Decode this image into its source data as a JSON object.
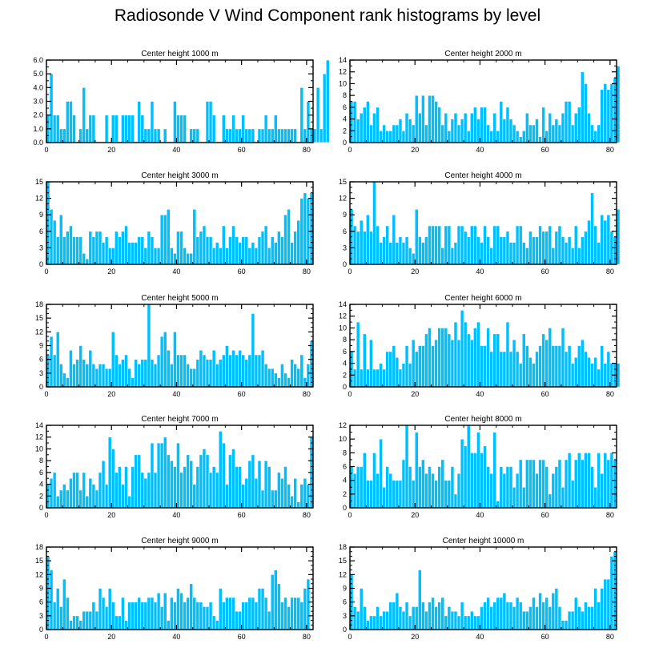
{
  "title": "Radiosonde V Wind Component rank histograms by level",
  "colors": {
    "bar_fill": "#00bfff",
    "bar_edge": "#ffffff",
    "axis": "#000000"
  },
  "chart_data": [
    {
      "type": "bar",
      "title": "Center height 1000 m",
      "xlim": [
        0,
        82
      ],
      "ylim": [
        0,
        6
      ],
      "xticks": [
        0,
        20,
        40,
        60,
        80
      ],
      "yticks": [
        0,
        1,
        2,
        3,
        4,
        5,
        6
      ],
      "ytick_labels": [
        "0.0",
        "1.0",
        "2.0",
        "3.0",
        "4.0",
        "5.0",
        "6.0"
      ],
      "values": [
        2,
        5,
        2,
        2,
        1,
        1,
        3,
        3,
        2,
        0,
        1,
        4,
        1,
        2,
        2,
        0,
        0,
        0,
        2,
        0,
        2,
        2,
        0,
        2,
        2,
        2,
        2,
        0,
        3,
        2,
        1,
        1,
        3,
        1,
        1,
        0,
        1,
        0,
        0,
        3,
        2,
        2,
        2,
        0,
        1,
        1,
        1,
        0,
        0,
        3,
        3,
        2,
        0,
        0,
        2,
        1,
        1,
        2,
        1,
        1,
        2,
        1,
        1,
        1,
        0,
        1,
        1,
        2,
        1,
        1,
        2,
        1,
        1,
        1,
        1,
        1,
        1,
        0,
        4,
        1,
        3,
        1,
        1,
        4,
        1,
        5,
        6
      ]
    },
    {
      "type": "bar",
      "title": "Center height 2000 m",
      "xlim": [
        0,
        82
      ],
      "ylim": [
        0,
        14
      ],
      "xticks": [
        0,
        20,
        40,
        60,
        80
      ],
      "yticks": [
        0,
        2,
        4,
        6,
        8,
        10,
        12,
        14
      ],
      "ytick_labels": [
        "0",
        "2",
        "4",
        "6",
        "8",
        "10",
        "12",
        "14"
      ],
      "values": [
        7,
        7,
        4,
        5,
        6,
        7,
        3,
        5,
        6,
        2,
        3,
        2,
        2,
        3,
        3,
        4,
        2,
        5,
        4,
        3,
        8,
        5,
        8,
        3,
        8,
        8,
        7,
        6,
        3,
        5,
        2,
        4,
        5,
        3,
        4,
        5,
        2,
        5,
        6,
        4,
        6,
        6,
        3,
        2,
        5,
        2,
        7,
        4,
        6,
        4,
        3,
        2,
        1,
        2,
        5,
        3,
        3,
        4,
        1,
        6,
        2,
        5,
        3,
        4,
        3,
        5,
        7,
        7,
        3,
        5,
        6,
        12,
        10,
        5,
        3,
        2,
        3,
        9,
        10,
        9,
        10,
        11,
        13
      ]
    },
    {
      "type": "bar",
      "title": "Center height 3000 m",
      "xlim": [
        0,
        82
      ],
      "ylim": [
        0,
        15
      ],
      "xticks": [
        0,
        20,
        40,
        60,
        80
      ],
      "yticks": [
        0,
        3,
        6,
        9,
        12,
        15
      ],
      "ytick_labels": [
        "0",
        "3",
        "6",
        "9",
        "12",
        "15"
      ],
      "values": [
        15,
        10,
        8,
        5,
        9,
        5,
        6,
        7,
        5,
        5,
        5,
        2,
        1,
        6,
        5,
        6,
        6,
        4,
        5,
        3,
        3,
        6,
        5,
        6,
        7,
        4,
        4,
        4,
        5,
        5,
        3,
        6,
        5,
        3,
        3,
        9,
        9,
        10,
        3,
        2,
        6,
        6,
        3,
        2,
        2,
        10,
        5,
        6,
        7,
        5,
        5,
        3,
        4,
        3,
        7,
        3,
        5,
        7,
        5,
        4,
        5,
        5,
        3,
        4,
        3,
        5,
        6,
        7,
        3,
        5,
        4,
        6,
        5,
        9,
        10,
        4,
        6,
        8,
        12,
        13,
        12,
        13
      ]
    },
    {
      "type": "bar",
      "title": "Center height 4000 m",
      "xlim": [
        0,
        82
      ],
      "ylim": [
        0,
        15
      ],
      "xticks": [
        0,
        20,
        40,
        60,
        80
      ],
      "yticks": [
        0,
        3,
        6,
        9,
        12,
        15
      ],
      "ytick_labels": [
        "0",
        "3",
        "6",
        "9",
        "12",
        "15"
      ],
      "values": [
        10,
        7,
        6,
        8,
        6,
        9,
        6,
        15,
        7,
        4,
        5,
        7,
        4,
        9,
        4,
        5,
        4,
        5,
        3,
        2,
        10,
        5,
        4,
        5,
        7,
        7,
        7,
        7,
        3,
        7,
        7,
        3,
        4,
        7,
        7,
        6,
        5,
        7,
        7,
        5,
        4,
        7,
        5,
        3,
        7,
        7,
        5,
        5,
        6,
        4,
        4,
        7,
        7,
        4,
        3,
        6,
        5,
        5,
        7,
        6,
        6,
        7,
        3,
        6,
        7,
        5,
        4,
        5,
        3,
        7,
        3,
        5,
        6,
        8,
        13,
        7,
        4,
        9,
        8,
        9,
        6,
        5,
        10
      ]
    },
    {
      "type": "bar",
      "title": "Center height 5000 m",
      "xlim": [
        0,
        82
      ],
      "ylim": [
        0,
        18
      ],
      "xticks": [
        0,
        20,
        40,
        60,
        80
      ],
      "yticks": [
        0,
        3,
        6,
        9,
        12,
        15,
        18
      ],
      "ytick_labels": [
        "0",
        "3",
        "6",
        "9",
        "12",
        "15",
        "18"
      ],
      "values": [
        7,
        11,
        7,
        12,
        5,
        3,
        2,
        8,
        5,
        6,
        9,
        6,
        5,
        8,
        5,
        4,
        5,
        5,
        4,
        4,
        12,
        7,
        5,
        6,
        7,
        4,
        2,
        6,
        5,
        6,
        6,
        18,
        6,
        5,
        7,
        11,
        12,
        8,
        5,
        12,
        7,
        7,
        7,
        5,
        4,
        4,
        6,
        8,
        7,
        6,
        6,
        8,
        5,
        6,
        7,
        9,
        7,
        8,
        7,
        8,
        7,
        6,
        7,
        16,
        7,
        7,
        8,
        5,
        4,
        4,
        3,
        2,
        5,
        3,
        2,
        6,
        5,
        4,
        7,
        2,
        5,
        10
      ]
    },
    {
      "type": "bar",
      "title": "Center height 6000 m",
      "xlim": [
        0,
        82
      ],
      "ylim": [
        0,
        14
      ],
      "xticks": [
        0,
        20,
        40,
        60,
        80
      ],
      "yticks": [
        0,
        2,
        4,
        6,
        8,
        10,
        12,
        14
      ],
      "ytick_labels": [
        "0",
        "2",
        "4",
        "6",
        "8",
        "10",
        "12",
        "14"
      ],
      "values": [
        6,
        3,
        11,
        3,
        9,
        3,
        8,
        3,
        3,
        4,
        3,
        6,
        6,
        7,
        5,
        3,
        4,
        7,
        4,
        8,
        6,
        7,
        7,
        9,
        10,
        7,
        8,
        10,
        10,
        10,
        9,
        8,
        11,
        8,
        13,
        11,
        9,
        8,
        10,
        11,
        7,
        7,
        10,
        6,
        9,
        9,
        6,
        6,
        11,
        6,
        8,
        6,
        4,
        9,
        7,
        5,
        4,
        6,
        7,
        9,
        8,
        10,
        7,
        7,
        7,
        10,
        6,
        7,
        4,
        5,
        7,
        8,
        6,
        5,
        4,
        5,
        3,
        7,
        4,
        6,
        4,
        4,
        4
      ]
    },
    {
      "type": "bar",
      "title": "Center height 7000 m",
      "xlim": [
        0,
        82
      ],
      "ylim": [
        0,
        14
      ],
      "xticks": [
        0,
        20,
        40,
        60,
        80
      ],
      "yticks": [
        0,
        2,
        4,
        6,
        8,
        10,
        12,
        14
      ],
      "ytick_labels": [
        "0",
        "2",
        "4",
        "6",
        "8",
        "10",
        "12",
        "14"
      ],
      "values": [
        4,
        5,
        6,
        2,
        3,
        4,
        3,
        5,
        6,
        6,
        3,
        6,
        2,
        5,
        4,
        3,
        6,
        8,
        4,
        12,
        10,
        6,
        7,
        4,
        7,
        2,
        7,
        9,
        9,
        6,
        5,
        6,
        11,
        6,
        11,
        11,
        12,
        9,
        8,
        7,
        11,
        6,
        7,
        9,
        8,
        4,
        7,
        9,
        10,
        9,
        6,
        7,
        6,
        13,
        11,
        4,
        9,
        10,
        7,
        7,
        4,
        5,
        8,
        9,
        5,
        8,
        3,
        8,
        7,
        3,
        3,
        6,
        5,
        7,
        4,
        2,
        5,
        1,
        4,
        5,
        4,
        12
      ]
    },
    {
      "type": "bar",
      "title": "Center height 8000 m",
      "xlim": [
        0,
        82
      ],
      "ylim": [
        0,
        12
      ],
      "xticks": [
        0,
        20,
        40,
        60,
        80
      ],
      "yticks": [
        0,
        2,
        4,
        6,
        8,
        10,
        12
      ],
      "ytick_labels": [
        "0",
        "2",
        "4",
        "6",
        "8",
        "10",
        "12"
      ],
      "values": [
        6,
        5,
        6,
        6,
        8,
        4,
        4,
        8,
        5,
        10,
        3,
        6,
        5,
        4,
        4,
        4,
        7,
        12,
        6,
        4,
        11,
        6,
        7,
        5,
        6,
        5,
        4,
        6,
        7,
        4,
        4,
        6,
        2,
        5,
        10,
        9,
        12,
        8,
        8,
        11,
        8,
        9,
        6,
        5,
        11,
        1,
        6,
        5,
        6,
        6,
        3,
        5,
        7,
        3,
        7,
        7,
        7,
        5,
        7,
        7,
        6,
        2,
        5,
        6,
        7,
        3,
        7,
        8,
        4,
        7,
        8,
        7,
        8,
        8,
        6,
        3,
        8,
        5,
        8,
        7,
        8,
        7
      ]
    },
    {
      "type": "bar",
      "title": "Center height 9000 m",
      "xlim": [
        0,
        82
      ],
      "ylim": [
        0,
        18
      ],
      "xticks": [
        0,
        20,
        40,
        60,
        80
      ],
      "yticks": [
        0,
        3,
        6,
        9,
        12,
        15,
        18
      ],
      "ytick_labels": [
        "0",
        "3",
        "6",
        "9",
        "12",
        "15",
        "18"
      ],
      "values": [
        16,
        13,
        6,
        9,
        5,
        11,
        7,
        2,
        3,
        3,
        2,
        4,
        4,
        4,
        6,
        4,
        9,
        7,
        5,
        9,
        6,
        3,
        3,
        7,
        2,
        6,
        6,
        6,
        7,
        6,
        6,
        7,
        7,
        6,
        8,
        5,
        8,
        2,
        7,
        6,
        9,
        8,
        6,
        7,
        10,
        7,
        6,
        6,
        5,
        5,
        6,
        3,
        2,
        9,
        6,
        7,
        7,
        7,
        4,
        4,
        6,
        6,
        7,
        7,
        6,
        9,
        9,
        7,
        4,
        12,
        13,
        10,
        6,
        7,
        5,
        7,
        7,
        7,
        6,
        9,
        11
      ]
    },
    {
      "type": "bar",
      "title": "Center height 10000 m",
      "xlim": [
        0,
        82
      ],
      "ylim": [
        0,
        18
      ],
      "xticks": [
        0,
        20,
        40,
        60,
        80
      ],
      "yticks": [
        0,
        3,
        6,
        9,
        12,
        15,
        18
      ],
      "ytick_labels": [
        "0",
        "3",
        "6",
        "9",
        "12",
        "15",
        "18"
      ],
      "values": [
        12,
        5,
        4,
        9,
        5,
        2,
        3,
        3,
        5,
        3,
        4,
        4,
        6,
        6,
        8,
        5,
        4,
        6,
        3,
        5,
        5,
        13,
        6,
        4,
        6,
        7,
        5,
        6,
        7,
        3,
        5,
        4,
        4,
        3,
        6,
        3,
        3,
        4,
        3,
        3,
        5,
        6,
        7,
        5,
        6,
        7,
        7,
        8,
        6,
        6,
        5,
        7,
        6,
        4,
        4,
        5,
        7,
        5,
        8,
        6,
        7,
        5,
        8,
        9,
        5,
        2,
        2,
        4,
        4,
        7,
        5,
        4,
        6,
        5,
        5,
        9,
        6,
        9,
        11,
        11,
        16,
        17
      ]
    }
  ]
}
